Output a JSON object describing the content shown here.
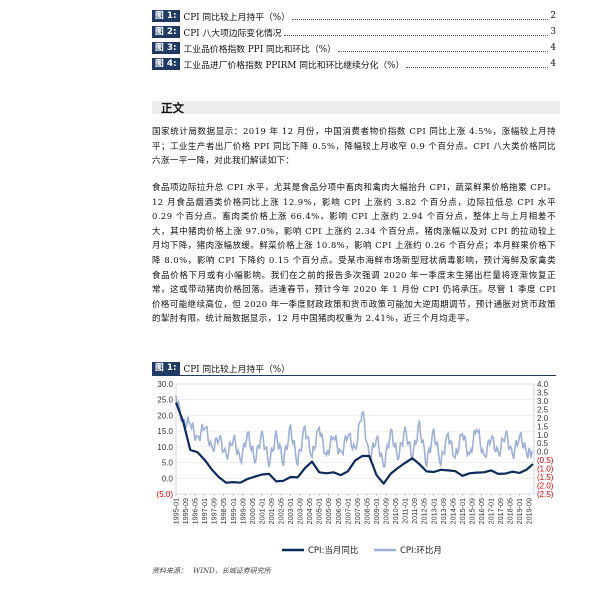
{
  "toc": [
    {
      "tag": "图 1:",
      "title": "CPI 同比较上月持平（%）",
      "page": "2"
    },
    {
      "tag": "图 2:",
      "title": "CPI 八大项边际变化情况",
      "page": "3"
    },
    {
      "tag": "图 3:",
      "title": "工业品价格指数 PPI 同比和环比（%）",
      "page": "4"
    },
    {
      "tag": "图 4:",
      "title": "工业品进厂价格指数 PPIRM 同比和环比继续分化（%）",
      "page": "4"
    }
  ],
  "section_title": "正文",
  "para1": "国家统计局数据显示：2019 年 12 月份，中国消费者物价指数 CPI 同比上涨 4.5%，涨幅较上月持平；工业生产者出厂价格 PPI 同比下降 0.5%，降幅较上月收窄 0.9 个百分点。CPI 八大类价格同比六涨一平一降，对此我们解读如下：",
  "para2": "食品项边际拉升总 CPI 水平，尤其是食品分项中畜肉和禽肉大幅抬升 CPI，蔬菜鲜果价格拖累 CPI。12 月食品烟酒类价格同比上涨 12.9%，影响 CPI 上涨约 3.82 个百分点，边际拉低总 CPI 水平 0.29 个百分点。畜肉类价格上涨 66.4%，影响 CPI 上涨约 2.94 个百分点，整体上与上月相差不大，其中猪肉价格上涨 97.0%，影响 CPI 上涨约 2.34 个百分点。猪肉涨幅以及对 CPI 的拉动较上月均下降，猪肉涨幅放缓。鲜菜价格上涨 10.8%，影响 CPI 上涨约 0.26 个百分点；本月鲜果价格下降 8.0%，影响 CPI 下降约 0.15 个百分点。受某市海鲜市场新型冠状病毒影响，预计海鲜及家禽类食品价格下月或有小幅影响。我们在之前的报告多次强调 2020 年一季度末生猪出栏量将逐渐恢复正常，这或带动猪肉价格回落。适逢春节，预计今年 2020 年 1 月份 CPI 仍将承压。尽管 1 季度 CPI 价格可能继续高位，但 2020 年一季度财政政策和货币政策可能加大逆周期调节，预计通胀对货币政策的掣肘有限。统计局数据显示，12 月中国猪肉权重为 2.41%，近三个月均走平。",
  "figure": {
    "tag": "图 1:",
    "title": "CPI 同比较上月持平（%）"
  },
  "source": {
    "label": "资料来源：",
    "text": "WIND，长城证券研究所"
  },
  "colors": {
    "navy": "#1f3a63",
    "cpi_yoy": "#0d2a5c",
    "cpi_mom": "#9fb0d8",
    "neg": "#d40000"
  },
  "chart_data": {
    "type": "line",
    "left_axis": {
      "ticks": [
        "30.0",
        "25.0",
        "20.0",
        "15.0",
        "10.0",
        "5.0",
        "0.0",
        "(5.0)"
      ],
      "min": -5,
      "max": 30
    },
    "right_axis": {
      "ticks": [
        "4.0",
        "3.5",
        "3.0",
        "2.5",
        "2.0",
        "1.5",
        "1.0",
        "0.5",
        "0.0",
        "(0.5)",
        "(1.0)",
        "(1.5)",
        "(2.0)",
        "(2.5)"
      ],
      "min": -2.5,
      "max": 4.0
    },
    "x_ticks": [
      "1995-01",
      "1996-01",
      "1997-01",
      "1998-01",
      "1999-01",
      "2000-01",
      "2001-01",
      "2002-01",
      "2003-01",
      "2004-01",
      "2005-01",
      "2006-01",
      "2007-01",
      "2008-01",
      "2009-01",
      "2010-01",
      "2011-01",
      "2012-01",
      "2013-01",
      "2014-01",
      "2015-01",
      "2016-01",
      "2017-01",
      "2018-01",
      "2019-01"
    ],
    "x_ticks_shown": [
      "1995-01",
      "1995-09",
      "1996-05",
      "1997-01",
      "1997-09",
      "1998-05",
      "1999-01",
      "1999-09",
      "2000-05",
      "2001-01",
      "2001-09",
      "2002-05",
      "2003-01",
      "2003-09",
      "2004-05",
      "2005-01",
      "2005-09",
      "2006-05",
      "2007-01",
      "2007-09",
      "2008-05",
      "2009-01",
      "2009-09",
      "2010-05",
      "2011-01",
      "2011-09",
      "2012-05",
      "2013-01",
      "2013-09",
      "2014-05",
      "2015-01",
      "2015-09",
      "2016-05",
      "2017-01",
      "2017-09",
      "2018-05",
      "2019-01",
      "2019-09"
    ],
    "series": [
      {
        "name": "CPI:当月同比",
        "axis": "left",
        "points": [
          [
            1995.0,
            24.1
          ],
          [
            1995.5,
            18.0
          ],
          [
            1996.0,
            9.0
          ],
          [
            1996.5,
            8.3
          ],
          [
            1997.0,
            5.9
          ],
          [
            1997.5,
            2.8
          ],
          [
            1998.0,
            0.3
          ],
          [
            1998.5,
            -1.4
          ],
          [
            1999.0,
            -1.2
          ],
          [
            1999.5,
            -1.4
          ],
          [
            2000.0,
            -0.2
          ],
          [
            2000.5,
            0.5
          ],
          [
            2001.0,
            1.2
          ],
          [
            2001.5,
            1.4
          ],
          [
            2002.0,
            -1.0
          ],
          [
            2002.5,
            -0.8
          ],
          [
            2003.0,
            0.4
          ],
          [
            2003.5,
            0.3
          ],
          [
            2004.0,
            3.2
          ],
          [
            2004.5,
            5.3
          ],
          [
            2005.0,
            1.9
          ],
          [
            2005.5,
            1.6
          ],
          [
            2006.0,
            1.9
          ],
          [
            2006.5,
            1.0
          ],
          [
            2007.0,
            2.2
          ],
          [
            2007.5,
            5.6
          ],
          [
            2008.0,
            7.1
          ],
          [
            2008.5,
            7.1
          ],
          [
            2009.0,
            1.0
          ],
          [
            2009.5,
            -1.7
          ],
          [
            2010.0,
            1.5
          ],
          [
            2010.5,
            3.3
          ],
          [
            2011.0,
            4.9
          ],
          [
            2011.5,
            6.4
          ],
          [
            2012.0,
            4.5
          ],
          [
            2012.5,
            2.2
          ],
          [
            2013.0,
            2.0
          ],
          [
            2013.5,
            2.7
          ],
          [
            2014.0,
            2.5
          ],
          [
            2014.5,
            2.3
          ],
          [
            2015.0,
            0.8
          ],
          [
            2015.5,
            1.6
          ],
          [
            2016.0,
            1.8
          ],
          [
            2016.5,
            1.9
          ],
          [
            2017.0,
            2.5
          ],
          [
            2017.5,
            1.4
          ],
          [
            2018.0,
            1.5
          ],
          [
            2018.5,
            2.1
          ],
          [
            2019.0,
            1.7
          ],
          [
            2019.5,
            2.8
          ],
          [
            2019.92,
            4.5
          ]
        ]
      },
      {
        "name": "CPI:环比月",
        "axis": "right",
        "points": [
          [
            1995.0,
            3.3
          ],
          [
            1995.5,
            1.6
          ],
          [
            1996.0,
            1.8
          ],
          [
            1996.5,
            0.6
          ],
          [
            1997.0,
            1.7
          ],
          [
            1997.5,
            0.0
          ],
          [
            1998.0,
            1.0
          ],
          [
            1998.5,
            -0.4
          ],
          [
            1999.0,
            0.9
          ],
          [
            1999.5,
            -0.6
          ],
          [
            2000.0,
            1.1
          ],
          [
            2000.5,
            -0.5
          ],
          [
            2001.0,
            1.0
          ],
          [
            2001.5,
            -0.6
          ],
          [
            2002.0,
            0.9
          ],
          [
            2002.5,
            -0.5
          ],
          [
            2003.0,
            1.3
          ],
          [
            2003.5,
            -0.6
          ],
          [
            2004.0,
            1.4
          ],
          [
            2004.5,
            -0.3
          ],
          [
            2005.0,
            1.5
          ],
          [
            2005.5,
            -0.4
          ],
          [
            2006.0,
            1.1
          ],
          [
            2006.5,
            -0.3
          ],
          [
            2007.0,
            1.2
          ],
          [
            2007.5,
            -0.1
          ],
          [
            2008.0,
            2.6
          ],
          [
            2008.5,
            -0.5
          ],
          [
            2009.0,
            0.9
          ],
          [
            2009.5,
            -0.9
          ],
          [
            2010.0,
            1.2
          ],
          [
            2010.5,
            -0.3
          ],
          [
            2011.0,
            1.2
          ],
          [
            2011.5,
            -0.2
          ],
          [
            2012.0,
            1.5
          ],
          [
            2012.5,
            -0.6
          ],
          [
            2013.0,
            1.1
          ],
          [
            2013.5,
            -0.6
          ],
          [
            2014.0,
            1.0
          ],
          [
            2014.5,
            -0.4
          ],
          [
            2015.0,
            1.2
          ],
          [
            2015.5,
            -0.4
          ],
          [
            2016.0,
            1.6
          ],
          [
            2016.5,
            -0.5
          ],
          [
            2017.0,
            1.0
          ],
          [
            2017.5,
            -0.3
          ],
          [
            2018.0,
            1.2
          ],
          [
            2018.5,
            -0.3
          ],
          [
            2019.0,
            1.0
          ],
          [
            2019.5,
            -0.1
          ],
          [
            2019.92,
            0.0
          ]
        ]
      }
    ]
  }
}
